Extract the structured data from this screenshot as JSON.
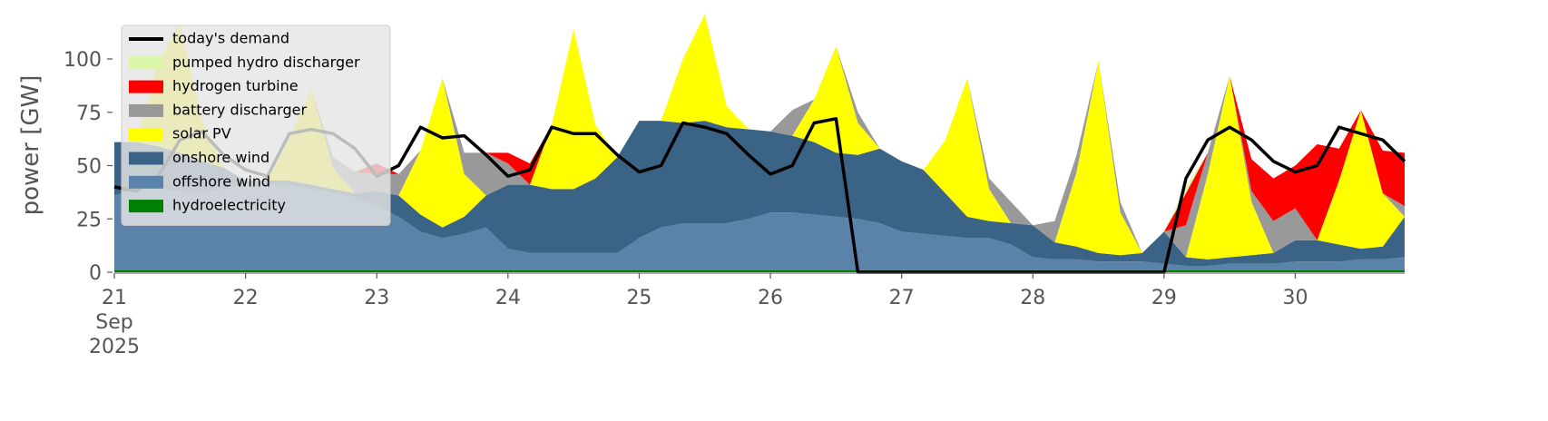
{
  "chart_data": {
    "type": "stacked_area",
    "ylabel": "power [GW]",
    "x": [
      0,
      4,
      8,
      12,
      16,
      20,
      24,
      28,
      32,
      36,
      40,
      44,
      48,
      52,
      56,
      60,
      64,
      68,
      72,
      76,
      80,
      84,
      88,
      92,
      96,
      100,
      104,
      108,
      112,
      116,
      120,
      124,
      128,
      132,
      136,
      140,
      144,
      148,
      152,
      156,
      160,
      164,
      168,
      172,
      176,
      180,
      184,
      188,
      192,
      196,
      200,
      204,
      208,
      212,
      216,
      220,
      224,
      228,
      232,
      236
    ],
    "xlim": [
      0,
      236
    ],
    "xticks": [
      {
        "value": 0,
        "label": "21 Sep 2025"
      },
      {
        "value": 24,
        "label": "22"
      },
      {
        "value": 48,
        "label": "23"
      },
      {
        "value": 72,
        "label": "24"
      },
      {
        "value": 96,
        "label": "25"
      },
      {
        "value": 120,
        "label": "26"
      },
      {
        "value": 144,
        "label": "27"
      },
      {
        "value": 168,
        "label": "28"
      },
      {
        "value": 192,
        "label": "29"
      },
      {
        "value": 216,
        "label": "30"
      }
    ],
    "ylim": [
      0,
      120
    ],
    "yticks": [
      0,
      25,
      50,
      75,
      100
    ],
    "legend": "upper left",
    "series": [
      {
        "name": "hydroelectricity",
        "color": "#008000",
        "values": [
          1,
          1,
          1,
          1,
          1,
          1,
          1,
          1,
          1,
          1,
          1,
          1,
          1,
          1,
          1,
          1,
          1,
          1,
          1,
          1,
          1,
          1,
          1,
          1,
          1,
          1,
          1,
          1,
          1,
          1,
          1,
          1,
          1,
          1,
          1,
          1,
          1,
          1,
          1,
          1,
          1,
          1,
          1,
          1,
          1,
          1,
          1,
          1,
          1,
          1,
          1,
          1,
          1,
          1,
          1,
          1,
          1,
          1,
          1,
          1
        ]
      },
      {
        "name": "offshore wind",
        "color": "#5b82a8",
        "values": [
          35,
          38,
          38,
          37,
          36,
          38,
          40,
          40,
          40,
          38,
          36,
          34,
          30,
          25,
          18,
          15,
          17,
          20,
          10,
          8,
          8,
          8,
          8,
          8,
          15,
          20,
          22,
          22,
          22,
          24,
          27,
          27,
          26,
          25,
          24,
          22,
          18,
          17,
          16,
          15,
          15,
          12,
          6,
          5,
          5,
          4,
          4,
          4,
          3,
          2,
          2,
          3,
          3,
          3,
          4,
          4,
          4,
          5,
          5,
          6
        ]
      },
      {
        "name": "onshore wind",
        "color": "#3b6386",
        "values": [
          25,
          22,
          20,
          18,
          15,
          10,
          2,
          2,
          2,
          2,
          2,
          2,
          7,
          10,
          8,
          5,
          8,
          15,
          30,
          32,
          30,
          30,
          35,
          45,
          55,
          50,
          47,
          48,
          45,
          42,
          38,
          36,
          34,
          30,
          30,
          35,
          33,
          30,
          20,
          10,
          8,
          10,
          15,
          8,
          6,
          4,
          3,
          4,
          15,
          4,
          3,
          3,
          4,
          5,
          10,
          10,
          8,
          5,
          6,
          19
        ]
      },
      {
        "name": "solar PV",
        "color": "#ffff00",
        "values": [
          0,
          0,
          40,
          60,
          20,
          0,
          0,
          0,
          20,
          45,
          10,
          0,
          0,
          0,
          30,
          70,
          20,
          0,
          0,
          0,
          30,
          75,
          25,
          0,
          0,
          0,
          30,
          50,
          10,
          0,
          0,
          0,
          20,
          50,
          15,
          0,
          0,
          0,
          25,
          65,
          15,
          0,
          0,
          0,
          35,
          90,
          20,
          0,
          0,
          0,
          40,
          85,
          25,
          0,
          0,
          0,
          30,
          65,
          25,
          0
        ]
      },
      {
        "name": "battery discharger",
        "color": "#999999",
        "values": [
          0,
          0,
          0,
          0,
          0,
          0,
          0,
          0,
          0,
          0,
          5,
          10,
          8,
          10,
          0,
          0,
          10,
          20,
          10,
          0,
          0,
          0,
          0,
          0,
          0,
          0,
          0,
          0,
          0,
          0,
          0,
          12,
          0,
          0,
          5,
          0,
          0,
          0,
          0,
          0,
          5,
          10,
          0,
          10,
          8,
          0,
          5,
          0,
          0,
          15,
          10,
          0,
          5,
          15,
          15,
          0,
          0,
          0,
          0,
          5
        ]
      },
      {
        "name": "hydrogen turbine",
        "color": "#ff0000",
        "values": [
          0,
          0,
          0,
          0,
          0,
          0,
          0,
          0,
          0,
          0,
          0,
          0,
          5,
          0,
          0,
          0,
          0,
          0,
          5,
          10,
          0,
          0,
          0,
          0,
          0,
          0,
          0,
          0,
          0,
          0,
          0,
          0,
          0,
          0,
          0,
          0,
          0,
          0,
          0,
          0,
          0,
          0,
          0,
          0,
          0,
          0,
          0,
          0,
          0,
          15,
          0,
          0,
          15,
          20,
          20,
          45,
          15,
          0,
          20,
          25
        ]
      },
      {
        "name": "pumped hydro discharger",
        "color": "#d9f7a6",
        "values": [
          0,
          0,
          0,
          0,
          0,
          0,
          0,
          0,
          0,
          0,
          0,
          0,
          0,
          0,
          0,
          0,
          0,
          0,
          0,
          0,
          0,
          0,
          0,
          0,
          0,
          0,
          0,
          0,
          0,
          0,
          0,
          0,
          0,
          0,
          0,
          0,
          0,
          0,
          0,
          0,
          0,
          0,
          0,
          0,
          0,
          0,
          0,
          0,
          0,
          3,
          0,
          0,
          0,
          0,
          0,
          0,
          0,
          0,
          0,
          0
        ]
      }
    ],
    "demand": {
      "name": "today's demand",
      "color": "#000000",
      "values": [
        40,
        38,
        45,
        62,
        66,
        55,
        48,
        45,
        65,
        67,
        65,
        58,
        45,
        50,
        68,
        63,
        64,
        55,
        45,
        48,
        68,
        65,
        65,
        55,
        47,
        50,
        70,
        68,
        65,
        55,
        46,
        50,
        70,
        72,
        0,
        0,
        0,
        0,
        0,
        0,
        0,
        0,
        0,
        0,
        0,
        0,
        0,
        0,
        0,
        44,
        62,
        68,
        62,
        52,
        47,
        50,
        68,
        65,
        62,
        52
      ]
    }
  }
}
